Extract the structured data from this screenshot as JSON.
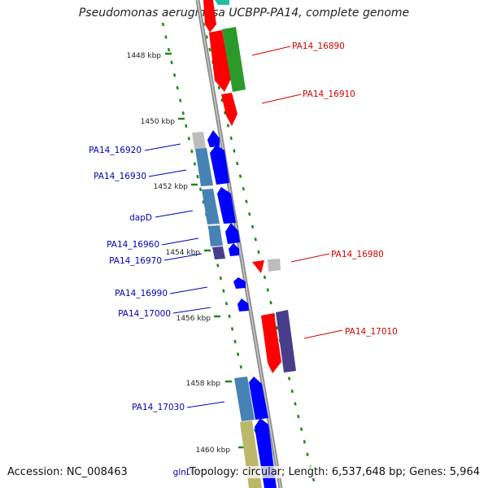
{
  "title": "Pseudomonas aeruginosa UCBPP-PA14, complete genome",
  "footer": {
    "accession": "Accession: NC_008463",
    "topology": "Topology: circular; Length: 6,537,648 bp; Genes: 5,964"
  },
  "ticks": [
    "1448 kbp",
    "1450 kbp",
    "1452 kbp",
    "1454 kbp",
    "1456 kbp",
    "1458 kbp",
    "1460 kbp"
  ],
  "forward_labels": [
    "PA14_16890",
    "PA14_16910",
    "PA14_16980",
    "PA14_17010"
  ],
  "reverse_labels": [
    "PA14_16920",
    "PA14_16930",
    "dapD",
    "PA14_16960",
    "PA14_16970",
    "PA14_16990",
    "PA14_17000",
    "PA14_17030",
    "glnD"
  ],
  "colors": {
    "red": "#ff0000",
    "green": "#2a9a2a",
    "blue": "#0000ff",
    "steel": "#4682b4",
    "slate": "#483d8b",
    "khaki": "#bdb76b",
    "grey": "#bdbdbd",
    "teal": "#20c0a0",
    "backbone": "#8c8c8c",
    "dots": "#1a8a1a"
  }
}
